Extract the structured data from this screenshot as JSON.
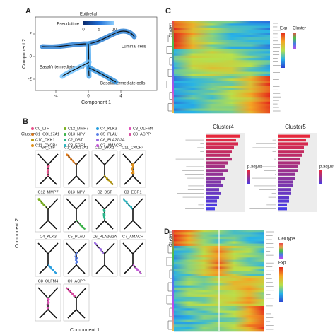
{
  "panel_a": {
    "label": "A",
    "legend_title": "Epithelial",
    "colorbar_title": "Pseudotime",
    "colorbar_ticks": [
      0,
      5,
      10
    ],
    "x_label": "Component 1",
    "y_label": "Component 2",
    "xticks": [
      -4,
      0,
      4
    ],
    "yticks": [
      2,
      0,
      -2
    ],
    "annotations": [
      "Luminal cells",
      "Basal/intermediate cells",
      "Basal/intermediate cells"
    ]
  },
  "panel_b": {
    "label": "B",
    "legend_title": "Cluster",
    "x_label": "Component 1",
    "y_label": "Component 2",
    "clusters": [
      {
        "name": "C0_LTF",
        "color": "#e8508a"
      },
      {
        "name": "C1_COL17A1",
        "color": "#e07a1a"
      },
      {
        "name": "C10_DKK1",
        "color": "#b89a10"
      },
      {
        "name": "C11_CXCR4",
        "color": "#e0901a"
      },
      {
        "name": "C12_MMP7",
        "color": "#7ab020"
      },
      {
        "name": "C13_NPY",
        "color": "#3cb44b"
      },
      {
        "name": "C2_DST",
        "color": "#2ab58a"
      },
      {
        "name": "C3_EGR1",
        "color": "#2ab5c0"
      },
      {
        "name": "C4_KLK3",
        "color": "#2aa0e0"
      },
      {
        "name": "C5_PLAU",
        "color": "#5a80e8"
      },
      {
        "name": "C6_PLA2G2A",
        "color": "#9a6ae0"
      },
      {
        "name": "C7_AMACR",
        "color": "#c45ad8"
      },
      {
        "name": "C8_OLFM4",
        "color": "#e050b8"
      },
      {
        "name": "C9_ACPP",
        "color": "#d84aa0"
      }
    ]
  },
  "panel_c": {
    "label": "C",
    "heatmap_side_label": "Cluster",
    "legend_titles": [
      "Exp",
      "Cluster"
    ],
    "bar_charts": [
      {
        "title": "Cluster4",
        "legend_title": "p.adjust",
        "values": [
          16,
          14,
          15,
          13,
          12,
          11,
          12,
          10,
          9,
          10,
          8,
          9,
          7,
          8,
          6,
          7,
          6,
          5,
          5,
          4
        ]
      },
      {
        "title": "Cluster5",
        "legend_title": "p.adjust",
        "values": [
          15,
          13,
          14,
          12,
          12,
          11,
          10,
          10,
          9,
          9,
          8,
          8,
          7,
          7,
          6,
          6,
          5,
          5,
          4,
          4
        ]
      }
    ]
  },
  "panel_d": {
    "label": "D",
    "heatmap_side_label": "Cluster",
    "legend_titles": [
      "Cell type",
      "Exp"
    ]
  }
}
